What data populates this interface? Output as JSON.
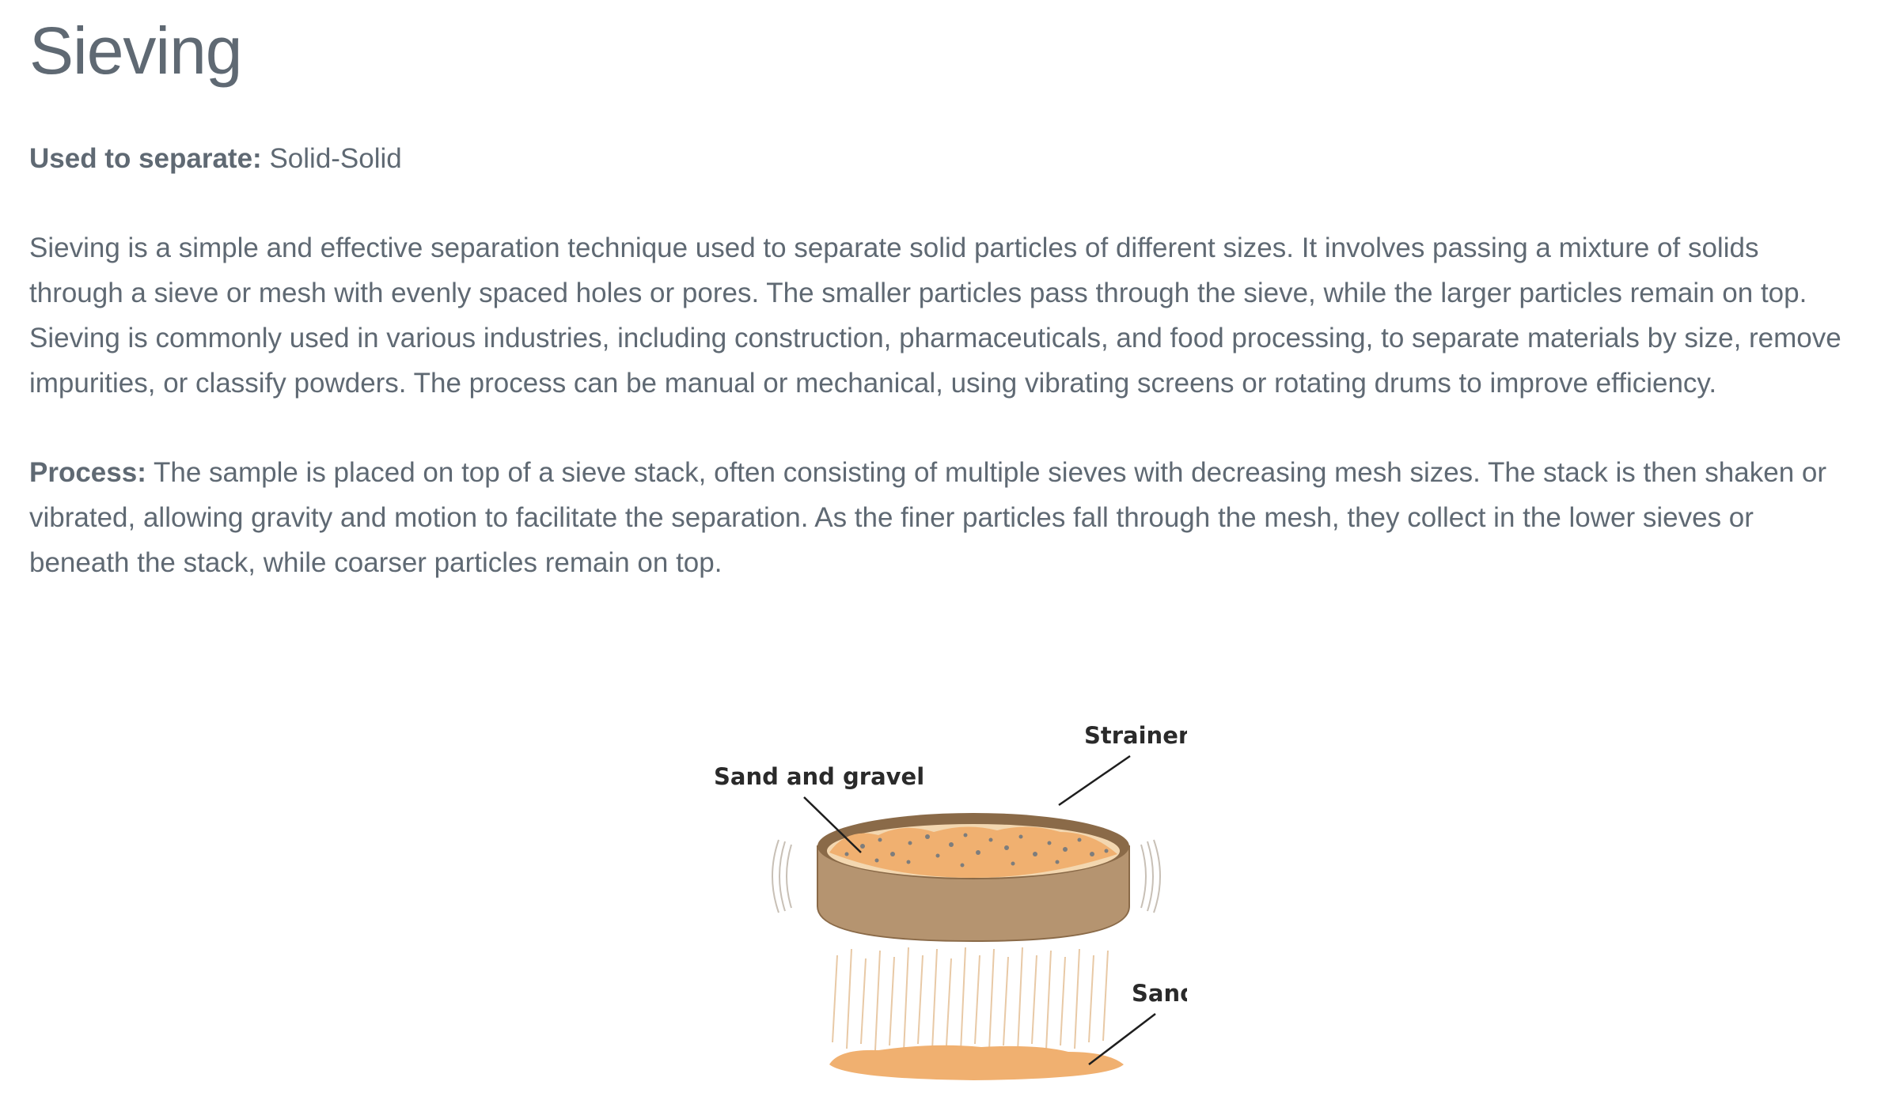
{
  "title": "Sieving",
  "used_to_separate": {
    "label": "Used to separate:",
    "value": "Solid-Solid"
  },
  "description": "Sieving is a simple and effective separation technique used to separate solid particles of different sizes. It involves passing a mixture of solids through a sieve or mesh with evenly spaced holes or pores. The smaller particles pass through the sieve, while the larger particles remain on top. Sieving is commonly used in various industries, including construction, pharmaceuticals, and food processing, to separate materials by size, remove impurities, or classify powders. The process can be manual or mechanical, using vibrating screens or rotating drums to improve efficiency.",
  "process": {
    "label": "Process:",
    "text": "The sample is placed on top of a sieve stack, often consisting of multiple sieves with decreasing mesh sizes. The stack is then shaken or vibrated, allowing gravity and motion to facilitate the separation. As the finer particles fall through the mesh, they collect in the lower sieves or beneath the stack, while coarser particles remain on top."
  },
  "figure": {
    "labels": {
      "strainer": "Strainer",
      "sand_and_gravel": "Sand and gravel",
      "sand": "Sand"
    },
    "colors": {
      "sieve_rim": "#8a6a48",
      "sieve_body": "#b59470",
      "sand": "#f0b070",
      "gravel": "#8a8a8a"
    }
  }
}
